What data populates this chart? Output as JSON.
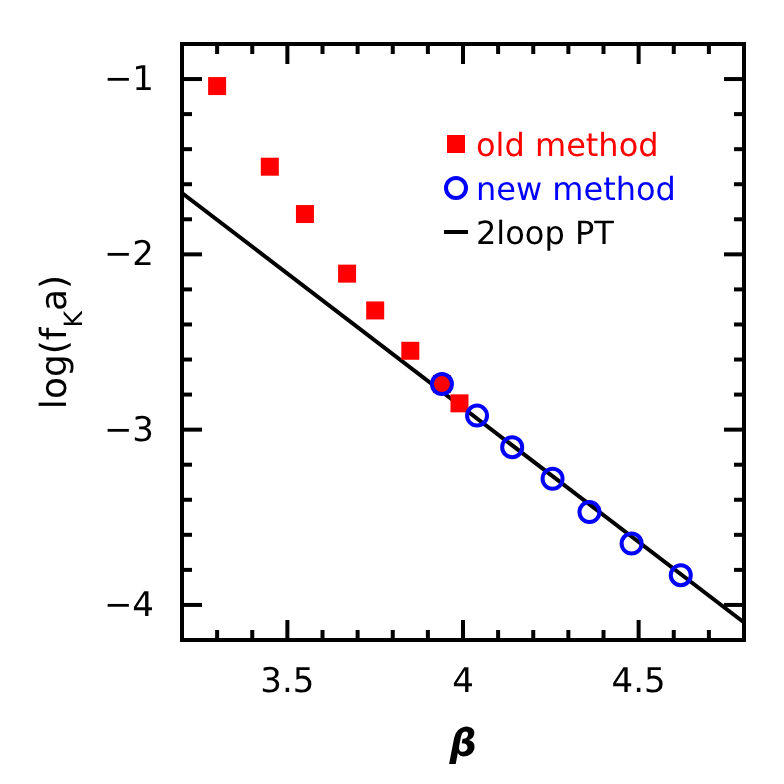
{
  "chart_data": {
    "type": "scatter",
    "xlabel": "β",
    "ylabel": "log(f$_{K}$a)",
    "xlim": [
      3.2,
      4.8
    ],
    "ylim": [
      -4.2,
      -0.8
    ],
    "xticks": [
      {
        "value": 3.3,
        "label": null
      },
      {
        "value": 3.4,
        "label": null
      },
      3.5,
      {
        "value": 3.6,
        "label": null
      },
      {
        "value": 3.7,
        "label": null
      },
      {
        "value": 3.8,
        "label": null
      },
      {
        "value": 3.9,
        "label": null
      },
      4,
      {
        "value": 4.1,
        "label": null
      },
      {
        "value": 4.2,
        "label": null
      },
      {
        "value": 4.3,
        "label": null
      },
      {
        "value": 4.4,
        "label": null
      },
      4.5,
      {
        "value": 4.6,
        "label": null
      },
      {
        "value": 4.7,
        "label": null
      }
    ],
    "yticks": [
      {
        "value": -4.2,
        "label": null
      },
      -4,
      {
        "value": -3.8,
        "label": null
      },
      {
        "value": -3.6,
        "label": null
      },
      {
        "value": -3.4,
        "label": null
      },
      {
        "value": -3.2,
        "label": null
      },
      -3,
      {
        "value": -2.8,
        "label": null
      },
      {
        "value": -2.6,
        "label": null
      },
      {
        "value": -2.4,
        "label": null
      },
      {
        "value": -2.2,
        "label": null
      },
      -2,
      {
        "value": -1.8,
        "label": null
      },
      {
        "value": -1.6,
        "label": null
      },
      {
        "value": -1.4,
        "label": null
      },
      {
        "value": -1.2,
        "label": null
      },
      -1,
      {
        "value": -0.8,
        "label": null
      }
    ],
    "legend": "top right",
    "grid": false,
    "series": [
      {
        "name": "old method",
        "marker": "square",
        "color": "#ff0000",
        "x": [
          3.3,
          3.45,
          3.55,
          3.67,
          3.75,
          3.85,
          3.94,
          3.99
        ],
        "values": [
          -1.04,
          -1.5,
          -1.77,
          -2.11,
          -2.32,
          -2.55,
          -2.74,
          -2.85
        ]
      },
      {
        "name": "new method",
        "marker": "circle",
        "color": "#0000ff",
        "x": [
          3.94,
          4.04,
          4.14,
          4.255,
          4.36,
          4.48,
          4.62
        ],
        "values": [
          -2.74,
          -2.92,
          -3.1,
          -3.28,
          -3.47,
          -3.65,
          -3.83
        ]
      },
      {
        "name": "2loop PT",
        "type": "line",
        "marker": "none",
        "color": "#000000",
        "x": [
          3.2,
          4.8
        ],
        "values": [
          -1.65,
          -4.1
        ]
      }
    ]
  }
}
